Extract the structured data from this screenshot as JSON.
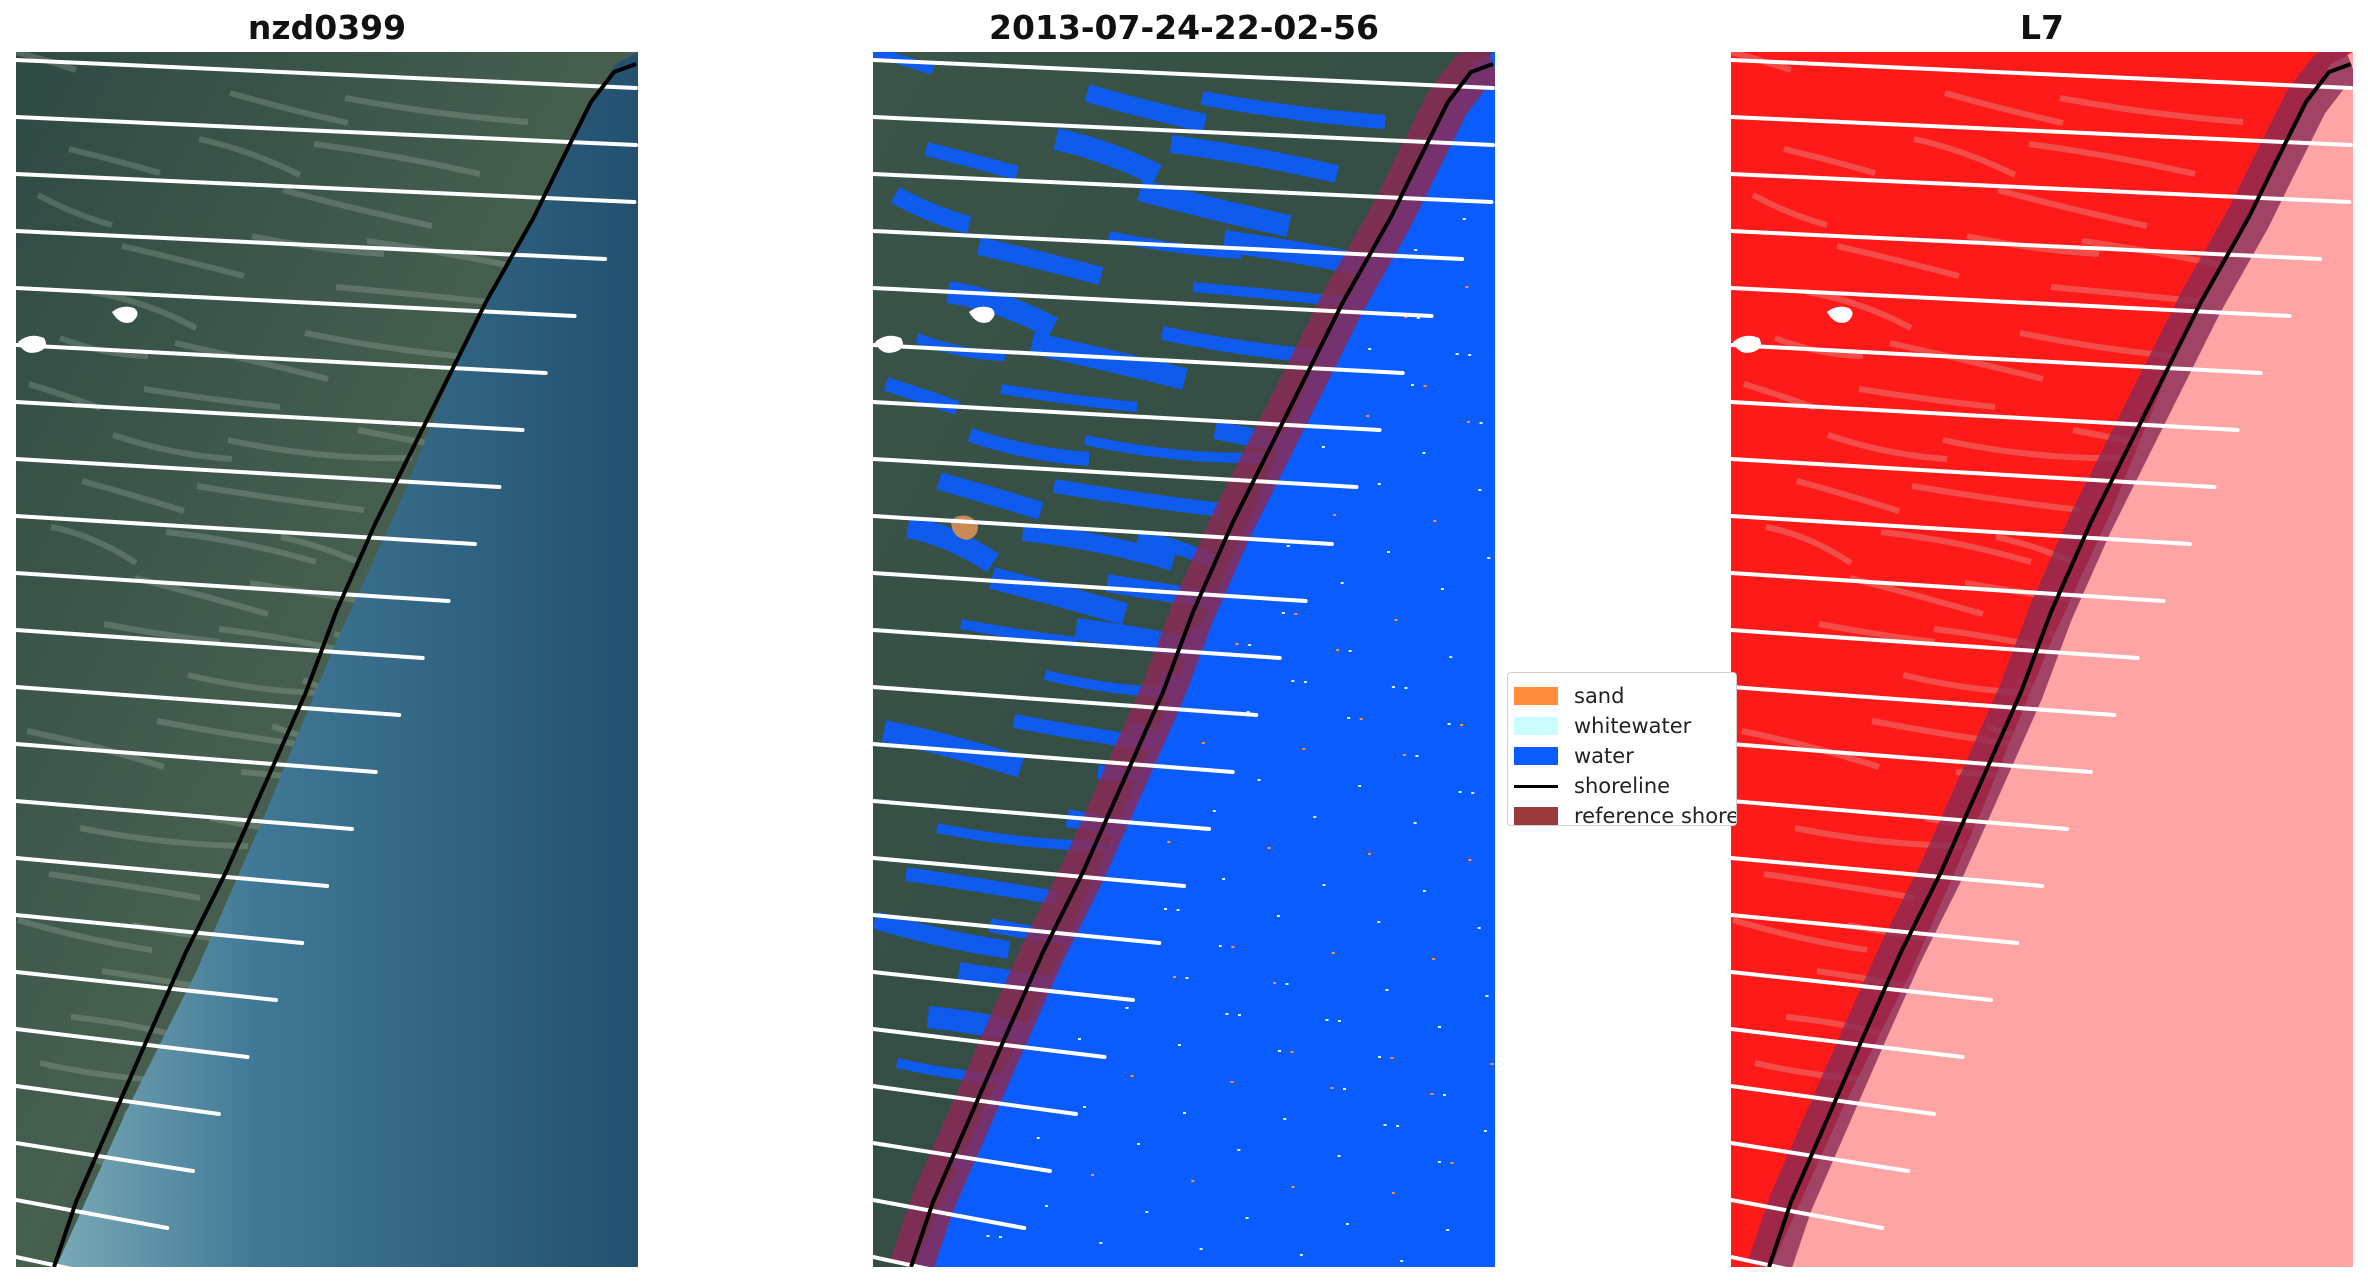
{
  "panels": [
    {
      "title": "nzd0399",
      "kind": "rgb"
    },
    {
      "title": "2013-07-24-22-02-56",
      "kind": "classified"
    },
    {
      "title": "L7",
      "kind": "index"
    }
  ],
  "legend": [
    {
      "label": "sand",
      "color": "#ff8c3a",
      "type": "patch"
    },
    {
      "label": "whitewater",
      "color": "#ccfcff",
      "type": "patch"
    },
    {
      "label": "water",
      "color": "#0a5cff",
      "type": "patch"
    },
    {
      "label": "shoreline",
      "color": "#000000",
      "type": "line"
    },
    {
      "label": "reference shoreline",
      "color": "#9b3a3a",
      "type": "patch"
    }
  ],
  "colors": {
    "land": "#3f5a4e",
    "land_dark": "#2a3f3a",
    "sea": "#2b5f80",
    "sea_shallow": "#6ea1b1",
    "water_class": "#0a5cff",
    "buffer": "#8a2a55",
    "index_land": "#ff1a1a",
    "index_sea": "#ffa4a4"
  }
}
